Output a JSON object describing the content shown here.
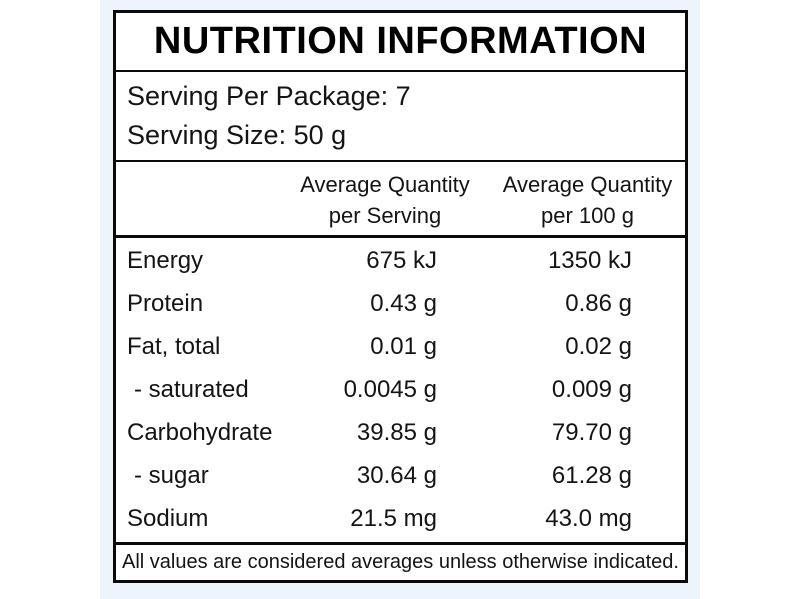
{
  "colors": {
    "page_bg": "#ffffff",
    "panel_bg": "#edf4fb",
    "box_bg": "#ffffff",
    "border": "#0a0a0a",
    "text": "#141414"
  },
  "label": {
    "title": "NUTRITION INFORMATION",
    "serving": {
      "line1": "Serving Per Package: 7",
      "line2": "Serving Size: 50 g"
    },
    "column_headers": {
      "per_serving": {
        "line1": "Average Quantity",
        "line2": "per Serving"
      },
      "per_100g": {
        "line1": "Average Quantity",
        "line2": "per 100 g"
      }
    },
    "rows": [
      {
        "label": "Energy",
        "per_serving": "675 kJ",
        "per_100g": "1350 kJ"
      },
      {
        "label": "Protein",
        "per_serving": "0.43 g",
        "per_100g": "0.86 g"
      },
      {
        "label": "Fat, total",
        "per_serving": "0.01 g",
        "per_100g": "0.02 g"
      },
      {
        "label": "- saturated",
        "per_serving": "0.0045 g",
        "per_100g": "0.009 g"
      },
      {
        "label": "Carbohydrate",
        "per_serving": "39.85 g",
        "per_100g": "79.70 g"
      },
      {
        "label": "- sugar",
        "per_serving": "30.64 g",
        "per_100g": "61.28 g"
      },
      {
        "label": "Sodium",
        "per_serving": "21.5 mg",
        "per_100g": "43.0 mg"
      }
    ],
    "footnote": "All values are considered averages unless otherwise indicated."
  }
}
